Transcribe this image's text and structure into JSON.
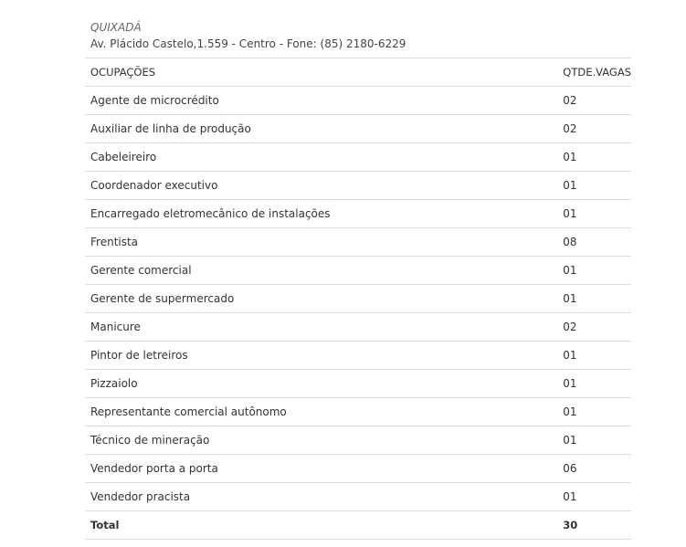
{
  "header": {
    "title": "QUIXADÁ",
    "address": "Av. Plácido Castelo,1.559 - Centro - Fone: (85) 2180-6229"
  },
  "table": {
    "columns": [
      "OCUPAÇÕES",
      "QTDE.VAGAS"
    ],
    "rows": [
      [
        "Agente de microcrédito",
        "02"
      ],
      [
        "Auxiliar de linha de produção",
        "02"
      ],
      [
        "Cabeleireiro",
        "01"
      ],
      [
        "Coordenador executivo",
        "01"
      ],
      [
        "Encarregado eletromecânico de instalações",
        "01"
      ],
      [
        "Frentista",
        "08"
      ],
      [
        "Gerente comercial",
        "01"
      ],
      [
        "Gerente de supermercado",
        "01"
      ],
      [
        "Manicure",
        "02"
      ],
      [
        "Pintor de letreiros",
        "01"
      ],
      [
        "Pizzaiolo",
        "01"
      ],
      [
        "Representante comercial autônomo",
        "01"
      ],
      [
        "Técnico de mineração",
        "01"
      ],
      [
        "Vendedor porta a porta",
        "06"
      ],
      [
        "Vendedor pracista",
        "01"
      ]
    ],
    "total": [
      "Total",
      "30"
    ]
  }
}
